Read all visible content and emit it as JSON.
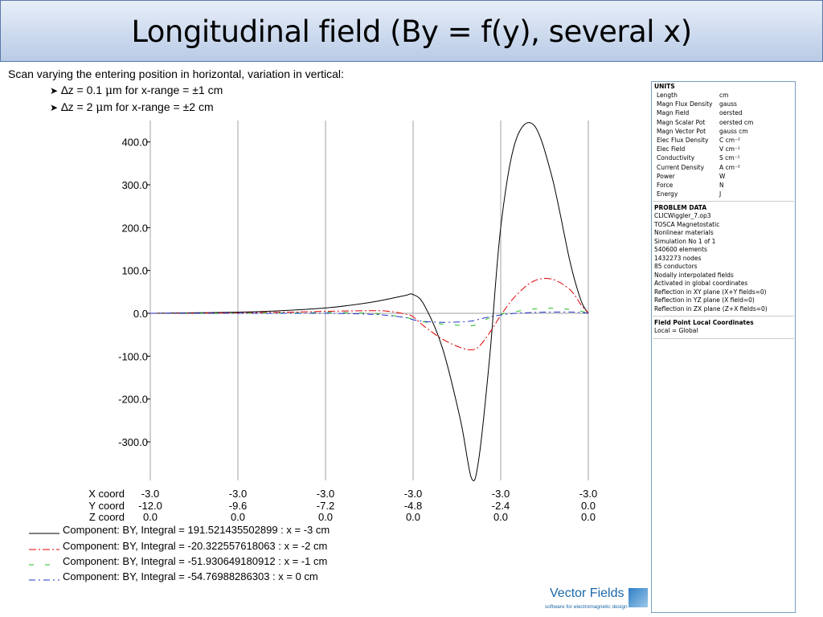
{
  "title": "Longitudinal field (By = f(y), several x)",
  "description": {
    "line": "Scan varying the entering position in horizontal, variation in vertical:",
    "bullets": [
      {
        "prefix": "∆z = 0.1 ",
        "mu": "μ",
        "suffix": "m for x-range = ±1 cm"
      },
      {
        "prefix": "∆z = 2 ",
        "mu": "μ",
        "suffix": "m for x-range = ±2 cm"
      }
    ]
  },
  "chart_data": {
    "type": "line",
    "x": [
      -12.0,
      -11.0,
      -10.0,
      -9.0,
      -8.0,
      -7.0,
      -6.0,
      -5.5,
      -5.0,
      -4.8,
      -4.5,
      -4.0,
      -3.5,
      -3.2,
      -3.0,
      -2.7,
      -2.4,
      -2.0,
      -1.5,
      -1.0,
      -0.5,
      -0.2,
      0.0
    ],
    "ylim": [
      -390,
      450
    ],
    "yticks": [
      "400.0",
      "300.0",
      "200.0",
      "100.0",
      "0.0",
      "-100.0",
      "-200.0",
      "-300.0"
    ],
    "ytick_values": [
      400,
      300,
      200,
      100,
      0,
      -100,
      -200,
      -300
    ],
    "tick_rows": [
      {
        "label": "X coord",
        "values": [
          "-3.0",
          "-3.0",
          "-3.0",
          "-3.0",
          "-3.0",
          "-3.0"
        ]
      },
      {
        "label": "Y coord",
        "values": [
          "-12.0",
          "-9.6",
          "-7.2",
          "-4.8",
          "-2.4",
          "0.0"
        ]
      },
      {
        "label": "Z coord",
        "values": [
          "0.0",
          "0.0",
          "0.0",
          "0.0",
          "0.0",
          "0.0"
        ]
      }
    ],
    "xtick_values": [
      -12.0,
      -9.6,
      -7.2,
      -4.8,
      -2.4,
      0.0
    ],
    "grid": "vertical",
    "series": [
      {
        "name": "Component: BY, Integral = 191.521435502899 : x = -3 cm",
        "color": "#000000",
        "dash": "",
        "values": [
          0,
          1,
          2,
          4,
          8,
          14,
          25,
          33,
          42,
          44,
          20,
          -80,
          -250,
          -385,
          -340,
          -100,
          200,
          400,
          440,
          320,
          120,
          30,
          0
        ]
      },
      {
        "name": "Component: BY, Integral = -20.322557618063 : x = -2 cm",
        "color": "#e00000",
        "dash": "9,3,2,3",
        "values": [
          0,
          0,
          1,
          2,
          3,
          5,
          6,
          5,
          -2,
          -8,
          -30,
          -60,
          -80,
          -85,
          -78,
          -45,
          -5,
          40,
          75,
          80,
          55,
          20,
          0
        ]
      },
      {
        "name": "Component: BY, Integral = -51.930649180912 : x = -1 cm",
        "color": "#22bb22",
        "dash": "6,14",
        "values": [
          0,
          0,
          0,
          1,
          1,
          2,
          0,
          -4,
          -10,
          -14,
          -20,
          -25,
          -28,
          -29,
          -24,
          -10,
          -2,
          4,
          10,
          12,
          9,
          5,
          0
        ]
      },
      {
        "name": "Component: BY, Integral = -54.76988286303 : x = 0 cm",
        "color": "#2233cc",
        "dash": "8,4,2,4",
        "values": [
          0,
          0,
          0,
          0,
          0,
          0,
          -2,
          -5,
          -10,
          -15,
          -19,
          -21,
          -20,
          -18,
          -14,
          -8,
          -4,
          0,
          2,
          3,
          3,
          2,
          0
        ]
      }
    ]
  },
  "units": {
    "title": "UNITS",
    "rows": [
      {
        "k": "Length",
        "v": "cm"
      },
      {
        "k": "Magn Flux Density",
        "v": "gauss"
      },
      {
        "k": "Magn Field",
        "v": "oersted"
      },
      {
        "k": "Magn Scalar Pot",
        "v": "oersted cm"
      },
      {
        "k": "Magn Vector Pot",
        "v": "gauss cm"
      },
      {
        "k": "Elec Flux Density",
        "v": "C cm⁻²"
      },
      {
        "k": "Elec Field",
        "v": "V cm⁻¹"
      },
      {
        "k": "Conductivity",
        "v": "S cm⁻¹"
      },
      {
        "k": "Current Density",
        "v": "A cm⁻²"
      },
      {
        "k": "Power",
        "v": "W"
      },
      {
        "k": "Force",
        "v": "N"
      },
      {
        "k": "Energy",
        "v": "J"
      }
    ]
  },
  "problem_data": {
    "title": "PROBLEM DATA",
    "lines": [
      "CLICWiggler_7.op3",
      "TOSCA Magnetostatic",
      "Nonlinear materials",
      "Simulation No 1 of 1",
      "540600 elements",
      "1432273 nodes",
      "85 conductors",
      "Nodally interpolated fields",
      "Activated in global coordinates",
      "Reflection in XY plane (X+Y fields=0)",
      "Reflection in YZ plane (X field=0)",
      "Reflection in ZX plane (Z+X fields=0)"
    ]
  },
  "field_point": {
    "title": "Field Point Local Coordinates",
    "line": "Local = Global"
  },
  "logo": {
    "name": "Vector Fields",
    "tagline": "software for electromagnetic design"
  }
}
